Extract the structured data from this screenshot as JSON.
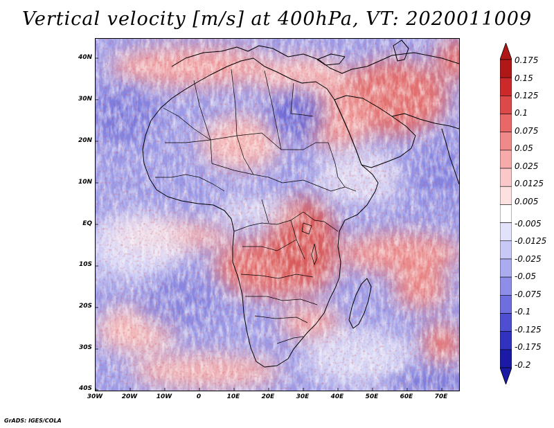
{
  "title": "Vertical velocity [m/s] at 400hPa, VT: 2020011009",
  "footer": "GrADS: IGES/COLA",
  "map": {
    "lat_labels": [
      "40N",
      "30N",
      "20N",
      "10N",
      "EQ",
      "10S",
      "20S",
      "30S",
      "40S"
    ],
    "lon_labels": [
      "30W",
      "20W",
      "10W",
      "0",
      "10E",
      "20E",
      "30E",
      "40E",
      "50E",
      "60E",
      "70E"
    ],
    "lat_range": [
      -40,
      44
    ],
    "lon_range": [
      -30,
      75
    ]
  },
  "colorbar": {
    "labels": [
      "0.175",
      "0.15",
      "0.125",
      "0.1",
      "0.075",
      "0.05",
      "0.025",
      "0.0125",
      "0.005",
      "-0.005",
      "-0.0125",
      "-0.025",
      "-0.05",
      "-0.075",
      "-0.1",
      "-0.125",
      "-0.175",
      "-0.2"
    ],
    "colors": [
      "#b01818",
      "#cc2a2a",
      "#dd4848",
      "#e86868",
      "#f08a8a",
      "#f6aaaa",
      "#fac8c8",
      "#fde0e0",
      "#ffffff",
      "#e2e2fb",
      "#c8c8f6",
      "#ababf0",
      "#8e8ee8",
      "#6e6ede",
      "#4e4ed2",
      "#3232c0",
      "#1a1aa6"
    ],
    "tip_top_color": "#b01818",
    "tip_bottom_color": "#1a1aa6"
  },
  "colors": {
    "land_outline": "#000000",
    "field_red": "#e86a6a",
    "field_blue": "#8a8ae6",
    "field_white": "#f4f4ff"
  }
}
